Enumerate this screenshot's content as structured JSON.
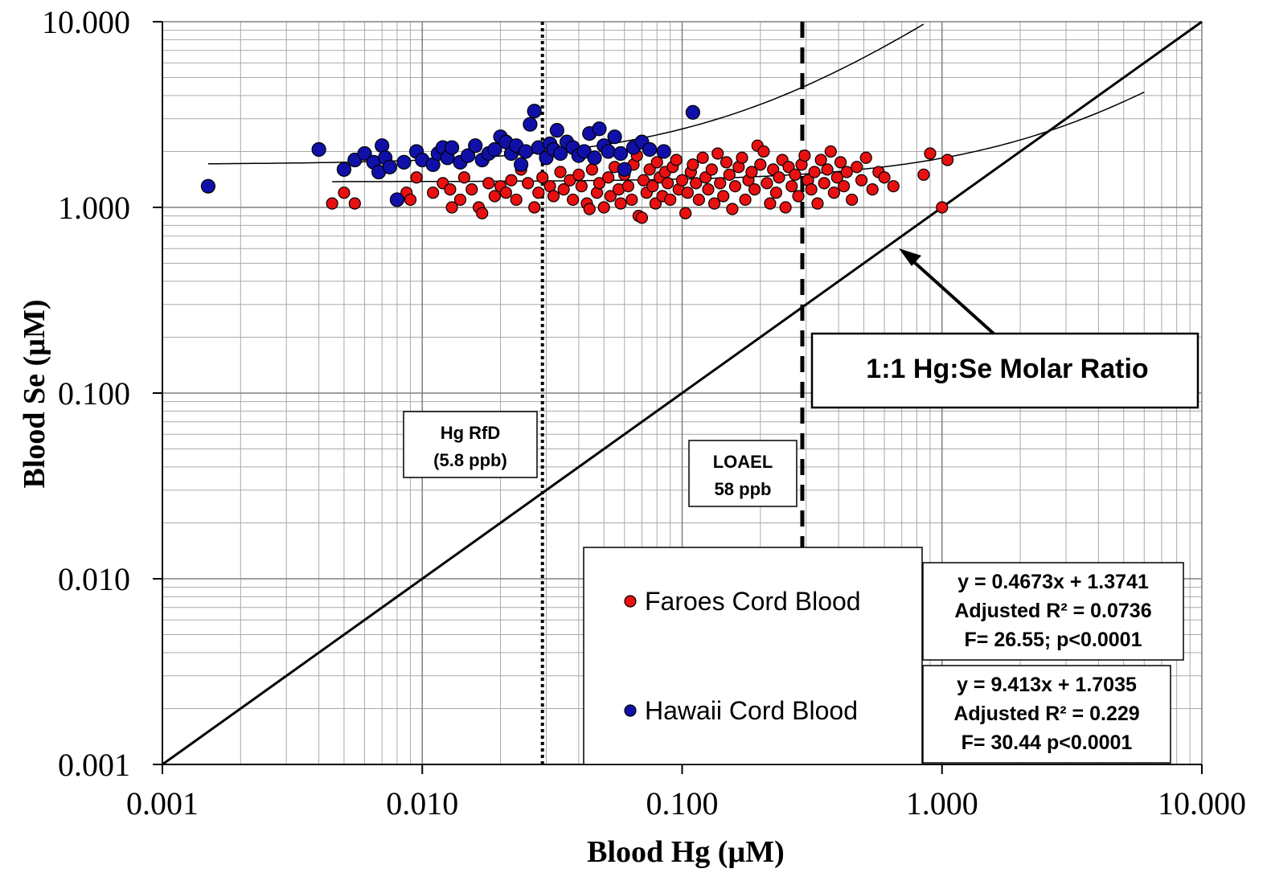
{
  "chart_data": {
    "type": "scatter",
    "xlabel": "Blood Hg (µM)",
    "ylabel": "Blood Se (µM)",
    "x_scale": "log",
    "y_scale": "log",
    "xlim": [
      0.001,
      10
    ],
    "ylim": [
      0.001,
      10
    ],
    "grid": true,
    "x_ticks": [
      "0.001",
      "0.010",
      "0.100",
      "1.000",
      "10.000"
    ],
    "y_ticks": [
      "10.000",
      "1.000",
      "0.100",
      "0.010",
      "0.001"
    ],
    "reference_lines": [
      {
        "label": "Hg RfD\n(5.8 ppb)",
        "x": 0.029,
        "style": "dotted"
      },
      {
        "label": "LOAEL\n58 ppb",
        "x": 0.29,
        "style": "dashed"
      }
    ],
    "ratio_line": {
      "label": "1:1 Hg:Se Molar Ratio",
      "x": [
        0.001,
        10
      ],
      "y": [
        0.001,
        10
      ]
    },
    "legend_position": "bottom-center",
    "series": [
      {
        "name": "Faroes Cord Blood",
        "color": "#e81010",
        "fit": {
          "slope": 0.4673,
          "intercept": 1.3741,
          "x_range": [
            0.0045,
            6
          ],
          "text": [
            "y = 0.4673x + 1.3741",
            "Adjusted R² = 0.0736",
            "F= 26.55; p<0.0001"
          ]
        },
        "points": [
          [
            0.0045,
            1.05
          ],
          [
            0.005,
            1.2
          ],
          [
            0.0055,
            1.05
          ],
          [
            0.0087,
            1.2
          ],
          [
            0.009,
            1.1
          ],
          [
            0.0095,
            1.45
          ],
          [
            0.011,
            1.2
          ],
          [
            0.012,
            1.35
          ],
          [
            0.0128,
            1.25
          ],
          [
            0.013,
            1.0
          ],
          [
            0.014,
            1.1
          ],
          [
            0.0145,
            1.45
          ],
          [
            0.0155,
            1.25
          ],
          [
            0.0165,
            1.0
          ],
          [
            0.017,
            0.93
          ],
          [
            0.018,
            1.35
          ],
          [
            0.019,
            1.15
          ],
          [
            0.02,
            1.3
          ],
          [
            0.021,
            1.2
          ],
          [
            0.022,
            1.4
          ],
          [
            0.023,
            1.1
          ],
          [
            0.024,
            1.6
          ],
          [
            0.0255,
            1.35
          ],
          [
            0.027,
            1.0
          ],
          [
            0.028,
            1.2
          ],
          [
            0.029,
            1.45
          ],
          [
            0.031,
            1.3
          ],
          [
            0.032,
            1.15
          ],
          [
            0.034,
            1.55
          ],
          [
            0.035,
            1.25
          ],
          [
            0.037,
            1.4
          ],
          [
            0.038,
            1.1
          ],
          [
            0.04,
            1.5
          ],
          [
            0.041,
            1.3
          ],
          [
            0.043,
            1.05
          ],
          [
            0.044,
            0.98
          ],
          [
            0.045,
            1.6
          ],
          [
            0.047,
            1.2
          ],
          [
            0.048,
            1.35
          ],
          [
            0.05,
            1.0
          ],
          [
            0.052,
            1.45
          ],
          [
            0.053,
            1.15
          ],
          [
            0.055,
            1.65
          ],
          [
            0.057,
            1.25
          ],
          [
            0.058,
            1.05
          ],
          [
            0.06,
            1.5
          ],
          [
            0.062,
            1.3
          ],
          [
            0.064,
            1.1
          ],
          [
            0.065,
            1.7
          ],
          [
            0.067,
            1.9
          ],
          [
            0.068,
            0.9
          ],
          [
            0.07,
            0.88
          ],
          [
            0.071,
            1.4
          ],
          [
            0.073,
            1.2
          ],
          [
            0.075,
            1.6
          ],
          [
            0.077,
            1.3
          ],
          [
            0.079,
            1.05
          ],
          [
            0.08,
            1.75
          ],
          [
            0.082,
            1.45
          ],
          [
            0.084,
            1.15
          ],
          [
            0.086,
            1.55
          ],
          [
            0.088,
            1.35
          ],
          [
            0.09,
            1.1
          ],
          [
            0.092,
            1.65
          ],
          [
            0.095,
            1.8
          ],
          [
            0.097,
            1.25
          ],
          [
            0.1,
            1.4
          ],
          [
            0.103,
            0.93
          ],
          [
            0.105,
            1.2
          ],
          [
            0.108,
            1.55
          ],
          [
            0.11,
            1.7
          ],
          [
            0.113,
            1.35
          ],
          [
            0.116,
            1.1
          ],
          [
            0.12,
            1.85
          ],
          [
            0.123,
            1.45
          ],
          [
            0.126,
            1.25
          ],
          [
            0.13,
            1.6
          ],
          [
            0.133,
            1.05
          ],
          [
            0.137,
            1.95
          ],
          [
            0.14,
            1.35
          ],
          [
            0.144,
            1.15
          ],
          [
            0.148,
            1.75
          ],
          [
            0.152,
            1.5
          ],
          [
            0.156,
            0.98
          ],
          [
            0.16,
            1.3
          ],
          [
            0.165,
            1.65
          ],
          [
            0.17,
            1.85
          ],
          [
            0.175,
            1.1
          ],
          [
            0.18,
            1.4
          ],
          [
            0.185,
            1.55
          ],
          [
            0.19,
            1.25
          ],
          [
            0.195,
            2.15
          ],
          [
            0.2,
            1.7
          ],
          [
            0.206,
            2.0
          ],
          [
            0.212,
            1.35
          ],
          [
            0.218,
            1.05
          ],
          [
            0.224,
            1.6
          ],
          [
            0.23,
            1.2
          ],
          [
            0.236,
            1.45
          ],
          [
            0.243,
            1.8
          ],
          [
            0.25,
            1.0
          ],
          [
            0.257,
            1.65
          ],
          [
            0.264,
            1.3
          ],
          [
            0.272,
            1.5
          ],
          [
            0.28,
            1.15
          ],
          [
            0.288,
            1.7
          ],
          [
            0.296,
            1.9
          ],
          [
            0.305,
            1.4
          ],
          [
            0.314,
            1.25
          ],
          [
            0.323,
            1.55
          ],
          [
            0.332,
            1.05
          ],
          [
            0.342,
            1.8
          ],
          [
            0.352,
            1.35
          ],
          [
            0.362,
            1.6
          ],
          [
            0.373,
            2.0
          ],
          [
            0.384,
            1.2
          ],
          [
            0.395,
            1.45
          ],
          [
            0.407,
            1.75
          ],
          [
            0.419,
            1.3
          ],
          [
            0.43,
            1.55
          ],
          [
            0.45,
            1.1
          ],
          [
            0.47,
            1.65
          ],
          [
            0.49,
            1.4
          ],
          [
            0.51,
            1.85
          ],
          [
            0.54,
            1.25
          ],
          [
            0.57,
            1.55
          ],
          [
            0.6,
            1.45
          ],
          [
            0.65,
            1.3
          ],
          [
            0.85,
            1.5
          ],
          [
            0.9,
            1.95
          ],
          [
            1.0,
            1.0
          ],
          [
            1.05,
            1.8
          ]
        ]
      },
      {
        "name": "Hawaii Cord Blood",
        "color": "#1010a8",
        "fit": {
          "slope": 9.413,
          "intercept": 1.7035,
          "x_range": [
            0.0015,
            10
          ],
          "text": [
            "y = 9.413x + 1.7035",
            "Adjusted R² = 0.229",
            "F= 30.44 p<0.0001"
          ]
        },
        "points": [
          [
            0.0015,
            1.3
          ],
          [
            0.004,
            2.05
          ],
          [
            0.005,
            1.6
          ],
          [
            0.0055,
            1.8
          ],
          [
            0.006,
            1.95
          ],
          [
            0.0065,
            1.75
          ],
          [
            0.0068,
            1.55
          ],
          [
            0.007,
            2.15
          ],
          [
            0.0072,
            1.85
          ],
          [
            0.0075,
            1.65
          ],
          [
            0.008,
            1.1
          ],
          [
            0.0085,
            1.75
          ],
          [
            0.0095,
            2.0
          ],
          [
            0.01,
            1.8
          ],
          [
            0.011,
            1.7
          ],
          [
            0.0115,
            1.95
          ],
          [
            0.012,
            2.1
          ],
          [
            0.0125,
            1.85
          ],
          [
            0.013,
            2.1
          ],
          [
            0.014,
            1.75
          ],
          [
            0.015,
            1.9
          ],
          [
            0.016,
            2.15
          ],
          [
            0.017,
            1.8
          ],
          [
            0.018,
            1.95
          ],
          [
            0.019,
            2.05
          ],
          [
            0.02,
            2.4
          ],
          [
            0.021,
            2.25
          ],
          [
            0.022,
            1.95
          ],
          [
            0.023,
            2.15
          ],
          [
            0.024,
            1.7
          ],
          [
            0.025,
            2.0
          ],
          [
            0.026,
            2.8
          ],
          [
            0.027,
            3.3
          ],
          [
            0.028,
            2.1
          ],
          [
            0.03,
            1.85
          ],
          [
            0.031,
            2.2
          ],
          [
            0.032,
            2.05
          ],
          [
            0.033,
            2.6
          ],
          [
            0.034,
            1.95
          ],
          [
            0.036,
            2.25
          ],
          [
            0.038,
            2.1
          ],
          [
            0.04,
            1.9
          ],
          [
            0.042,
            2.0
          ],
          [
            0.044,
            2.5
          ],
          [
            0.046,
            1.85
          ],
          [
            0.048,
            2.65
          ],
          [
            0.05,
            2.15
          ],
          [
            0.052,
            2.0
          ],
          [
            0.055,
            2.4
          ],
          [
            0.058,
            1.95
          ],
          [
            0.06,
            1.6
          ],
          [
            0.065,
            2.1
          ],
          [
            0.07,
            2.25
          ],
          [
            0.075,
            2.05
          ],
          [
            0.085,
            2.0
          ],
          [
            0.11,
            3.25
          ]
        ]
      }
    ]
  }
}
